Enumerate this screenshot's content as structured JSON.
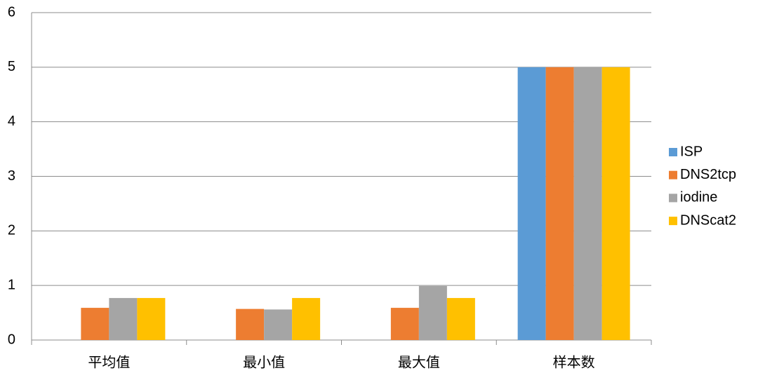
{
  "chart_data": {
    "type": "bar",
    "categories": [
      "平均值",
      "最小值",
      "最大值",
      "样本数"
    ],
    "series": [
      {
        "name": "ISP",
        "color": "#5b9bd5",
        "values": [
          0,
          0,
          0,
          5
        ]
      },
      {
        "name": "DNS2tcp",
        "color": "#ed7d31",
        "values": [
          0.59,
          0.57,
          0.59,
          5
        ]
      },
      {
        "name": "iodine",
        "color": "#a5a5a5",
        "values": [
          0.77,
          0.56,
          0.99,
          5
        ]
      },
      {
        "name": "DNScat2",
        "color": "#ffc000",
        "values": [
          0.77,
          0.77,
          0.77,
          5
        ]
      }
    ],
    "ylim": [
      0,
      6
    ],
    "yticks": [
      0,
      1,
      2,
      3,
      4,
      5,
      6
    ],
    "grid": true,
    "legend": "right"
  }
}
